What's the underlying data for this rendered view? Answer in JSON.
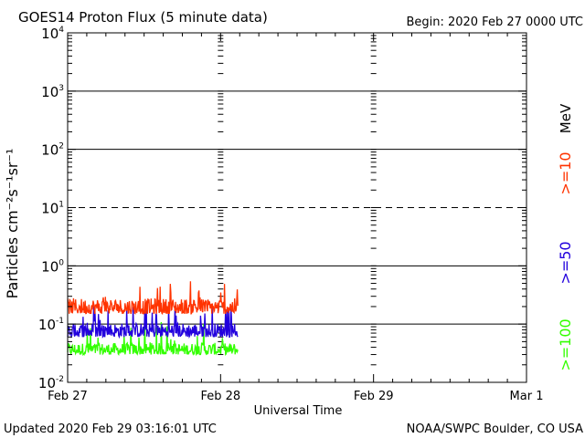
{
  "chart_data": {
    "type": "line",
    "title": "GOES14 Proton Flux (5 minute data)",
    "begin_label": "Begin: 2020 Feb 27 0000 UTC",
    "xlabel": "Universal Time",
    "ylabel": "Particles cm⁻²s⁻¹sr⁻¹",
    "y_scale": "log",
    "ylim": [
      0.01,
      10000
    ],
    "xlim_days": [
      0,
      3
    ],
    "data_end_day": 1.1125,
    "x_tick_labels": [
      {
        "day": 0,
        "label": "Feb 27"
      },
      {
        "day": 1,
        "label": "Feb 28"
      },
      {
        "day": 2,
        "label": "Feb 29"
      },
      {
        "day": 3,
        "label": "Mar 1"
      }
    ],
    "y_tick_labels": [
      {
        "value": 10000,
        "base": "10",
        "exp": "4"
      },
      {
        "value": 1000,
        "base": "10",
        "exp": "3"
      },
      {
        "value": 100,
        "base": "10",
        "exp": "2"
      },
      {
        "value": 10,
        "base": "10",
        "exp": "1"
      },
      {
        "value": 1,
        "base": "10",
        "exp": "0"
      },
      {
        "value": 0.1,
        "base": "10",
        "exp": "-1"
      },
      {
        "value": 0.01,
        "base": "10",
        "exp": "-2"
      }
    ],
    "threshold_lines": [
      {
        "value": 1000,
        "style": "solid"
      },
      {
        "value": 100,
        "style": "solid"
      },
      {
        "value": 10,
        "style": "dashed"
      },
      {
        "value": 1,
        "style": "solid"
      },
      {
        "value": 0.1,
        "style": "solid"
      }
    ],
    "series": [
      {
        "name": ">=10 MeV",
        "label": ">=10",
        "unit": "MeV",
        "color": "#ff3300",
        "typical": 0.22,
        "min": 0.15,
        "max": 0.55
      },
      {
        "name": ">=50 MeV",
        "label": ">=50",
        "color": "#2200dd",
        "typical": 0.085,
        "min": 0.06,
        "max": 0.22
      },
      {
        "name": ">=100 MeV",
        "label": ">=100",
        "color": "#33ff00",
        "typical": 0.04,
        "min": 0.03,
        "max": 0.13
      }
    ]
  },
  "footer": {
    "updated": "Updated 2020 Feb 29 03:16:01 UTC",
    "credit": "NOAA/SWPC Boulder, CO USA"
  }
}
